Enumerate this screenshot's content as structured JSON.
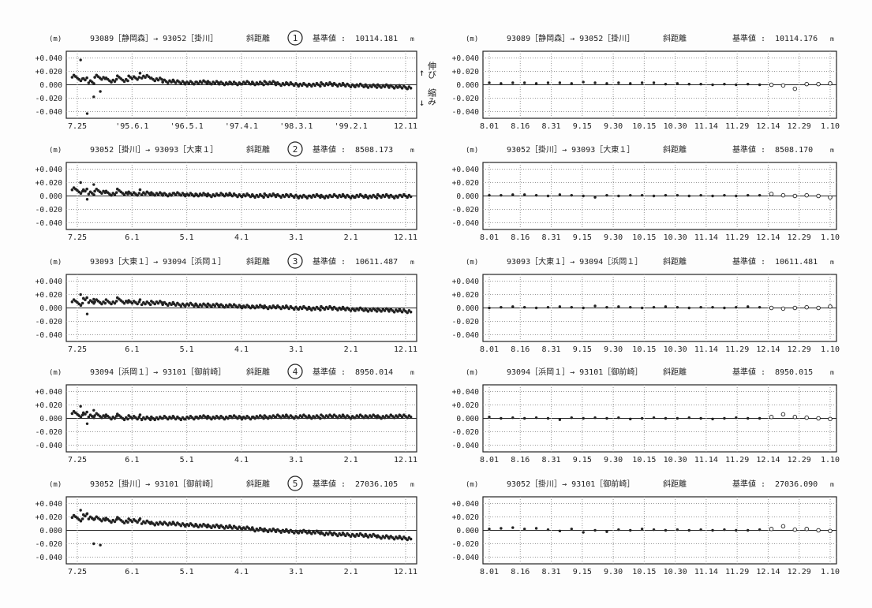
{
  "side_labels": {
    "up_arrow": "↑",
    "down_arrow": "↓",
    "extension": "伸び",
    "contraction": "縮み"
  },
  "chart_data": [
    {
      "type": "scatter",
      "panel": "left",
      "number": "1",
      "unit_label": "(m)",
      "route": "93089［静岡森］→ 93052［掛川］",
      "quantity": "斜距離",
      "base_label": "基準値 :",
      "base_value": "10114.181",
      "unit_suffix": "m",
      "y_ticks": [
        "+0.040",
        "+0.020",
        "0.000",
        "-0.020",
        "-0.040"
      ],
      "ylim": [
        -0.05,
        0.05
      ],
      "grid": true,
      "x_ticks": [
        "7.25",
        "'95.6.1",
        "'96.5.1",
        "'97.4.1",
        "'98.3.1",
        "'99.2.1",
        "12.11"
      ],
      "values": [
        0.008,
        0.004,
        0.009,
        0.006,
        0.007,
        0.01,
        0.012,
        0.008,
        0.005,
        0.004,
        0.003,
        0.004,
        0.003,
        0.002,
        0.002,
        0.003,
        0.002,
        0.003,
        0.001,
        0.001,
        0.0,
        0.0,
        0.001,
        0.0,
        -0.001,
        -0.001,
        -0.002,
        -0.002,
        -0.003,
        -0.004
      ],
      "outliers": [
        0.037,
        -0.043,
        -0.018,
        -0.01
      ]
    },
    {
      "type": "scatter",
      "panel": "right",
      "unit_label": "(m)",
      "route": "93089［静岡森］→ 93052［掛川］",
      "quantity": "斜距離",
      "base_label": "基準値 :",
      "base_value": "10114.176",
      "unit_suffix": "m",
      "y_ticks": [
        "+0.040",
        "+0.020",
        "0.000",
        "-0.020",
        "-0.040"
      ],
      "ylim": [
        -0.05,
        0.05
      ],
      "grid": true,
      "x_ticks": [
        "8.01",
        "8.16",
        "8.31",
        "9.15",
        "9.30",
        "10.15",
        "10.30",
        "11.14",
        "11.29",
        "12.14",
        "12.29",
        "1.10"
      ],
      "values": [
        0.003,
        0.002,
        0.003,
        0.003,
        0.002,
        0.003,
        0.003,
        0.002,
        0.004,
        0.003,
        0.002,
        0.003,
        0.002,
        0.003,
        0.003,
        0.001,
        0.002,
        0.001,
        0.001,
        0.0,
        0.001,
        0.0,
        0.001,
        0.0,
        0.0,
        -0.001,
        -0.006,
        0.001,
        0.001,
        0.002
      ],
      "open_from": 24
    },
    {
      "type": "scatter",
      "panel": "left",
      "number": "2",
      "unit_label": "(m)",
      "route": "93052［掛川］→ 93093［大東１］",
      "quantity": "斜距離",
      "base_label": "基準値 :",
      "base_value": "8508.173",
      "unit_suffix": "m",
      "y_ticks": [
        "+0.040",
        "+0.020",
        "0.000",
        "-0.020",
        "-0.040"
      ],
      "ylim": [
        -0.05,
        0.05
      ],
      "grid": true,
      "x_ticks": [
        "7.25",
        "6.1",
        "5.1",
        "4.1",
        "3.1",
        "2.1",
        "12.11"
      ],
      "values": [
        0.006,
        0.004,
        0.005,
        0.003,
        0.004,
        0.003,
        0.004,
        0.003,
        0.002,
        0.003,
        0.002,
        0.002,
        0.001,
        0.002,
        0.001,
        0.001,
        0.0,
        0.001,
        0.0,
        0.0,
        -0.001,
        0.0,
        -0.001,
        0.0,
        -0.001,
        0.0,
        -0.001,
        0.0,
        -0.001,
        0.0
      ],
      "outliers": [
        0.02,
        -0.005,
        0.017
      ]
    },
    {
      "type": "scatter",
      "panel": "right",
      "unit_label": "(m)",
      "route": "93052［掛川］→ 93093［大東１］",
      "quantity": "斜距離",
      "base_label": "基準値 :",
      "base_value": "8508.170",
      "unit_suffix": "m",
      "y_ticks": [
        "+0.040",
        "+0.020",
        "0.000",
        "-0.020",
        "-0.040"
      ],
      "ylim": [
        -0.05,
        0.05
      ],
      "grid": true,
      "x_ticks": [
        "8.01",
        "8.16",
        "8.31",
        "9.15",
        "9.30",
        "10.15",
        "10.30",
        "11.14",
        "11.29",
        "12.14",
        "12.29",
        "1.10"
      ],
      "values": [
        0.001,
        0.001,
        0.002,
        0.002,
        0.001,
        0.0,
        0.002,
        0.001,
        0.0,
        -0.002,
        0.001,
        0.0,
        0.001,
        0.001,
        0.0,
        0.001,
        0.001,
        0.0,
        0.001,
        0.0,
        0.001,
        0.0,
        0.001,
        0.001,
        0.003,
        0.001,
        0.0,
        0.001,
        0.0,
        -0.002
      ],
      "open_from": 24
    },
    {
      "type": "scatter",
      "panel": "left",
      "number": "3",
      "unit_label": "(m)",
      "route": "93093［大東１］→ 93094［浜岡１］",
      "quantity": "斜距離",
      "base_label": "基準値 :",
      "base_value": "10611.487",
      "unit_suffix": "m",
      "y_ticks": [
        "+0.040",
        "+0.020",
        "0.000",
        "-0.020",
        "-0.040"
      ],
      "ylim": [
        -0.05,
        0.05
      ],
      "grid": true,
      "x_ticks": [
        "7.25",
        "6.1",
        "5.1",
        "4.1",
        "3.1",
        "2.1",
        "12.11"
      ],
      "values": [
        0.006,
        0.009,
        0.007,
        0.008,
        0.009,
        0.008,
        0.007,
        0.008,
        0.006,
        0.005,
        0.005,
        0.004,
        0.004,
        0.003,
        0.003,
        0.002,
        0.002,
        0.001,
        0.001,
        0.0,
        0.0,
        -0.001,
        0.0,
        -0.001,
        -0.002,
        -0.002,
        -0.003,
        -0.003,
        -0.004,
        -0.005
      ],
      "outliers": [
        0.02,
        -0.009,
        0.013
      ]
    },
    {
      "type": "scatter",
      "panel": "right",
      "unit_label": "(m)",
      "route": "93093［大東１］→ 93094［浜岡１］",
      "quantity": "斜距離",
      "base_label": "基準値 :",
      "base_value": "10611.481",
      "unit_suffix": "m",
      "y_ticks": [
        "+0.040",
        "+0.020",
        "0.000",
        "-0.020",
        "-0.040"
      ],
      "ylim": [
        -0.05,
        0.05
      ],
      "grid": true,
      "x_ticks": [
        "8.01",
        "8.16",
        "8.31",
        "9.15",
        "9.30",
        "10.15",
        "10.30",
        "11.14",
        "11.29",
        "12.14",
        "12.29",
        "1.10"
      ],
      "values": [
        0.0,
        0.001,
        0.002,
        0.001,
        0.0,
        0.001,
        0.002,
        0.001,
        0.0,
        0.003,
        0.001,
        0.002,
        0.001,
        0.0,
        0.001,
        0.002,
        0.001,
        0.0,
        0.001,
        0.001,
        0.0,
        0.001,
        0.002,
        0.001,
        0.0,
        -0.001,
        0.0,
        0.001,
        0.0,
        0.002
      ],
      "open_from": 24
    },
    {
      "type": "scatter",
      "panel": "left",
      "number": "4",
      "unit_label": "(m)",
      "route": "93094［浜岡１］→ 93101［御前崎］",
      "quantity": "斜距離",
      "base_label": "基準値 :",
      "base_value": "8950.014",
      "unit_suffix": "m",
      "y_ticks": [
        "+0.040",
        "+0.020",
        "0.000",
        "-0.020",
        "-0.040"
      ],
      "ylim": [
        -0.05,
        0.05
      ],
      "grid": true,
      "x_ticks": [
        "7.25",
        "6.1",
        "5.1",
        "4.1",
        "3.1",
        "2.1",
        "12.11"
      ],
      "values": [
        0.004,
        0.003,
        0.002,
        0.001,
        0.0,
        0.001,
        0.0,
        0.0,
        0.001,
        0.0,
        0.001,
        0.002,
        0.001,
        0.001,
        0.002,
        0.001,
        0.002,
        0.002,
        0.003,
        0.002,
        0.003,
        0.002,
        0.003,
        0.003,
        0.002,
        0.003,
        0.003,
        0.002,
        0.003,
        0.003
      ],
      "outliers": [
        0.018,
        -0.008,
        0.012
      ]
    },
    {
      "type": "scatter",
      "panel": "right",
      "unit_label": "(m)",
      "route": "93094［浜岡１］→ 93101［御前崎］",
      "quantity": "斜距離",
      "base_label": "基準値 :",
      "base_value": "8950.015",
      "unit_suffix": "m",
      "y_ticks": [
        "+0.040",
        "+0.020",
        "0.000",
        "-0.020",
        "-0.040"
      ],
      "ylim": [
        -0.05,
        0.05
      ],
      "grid": true,
      "x_ticks": [
        "8.01",
        "8.16",
        "8.31",
        "9.15",
        "9.30",
        "10.15",
        "10.30",
        "11.14",
        "11.29",
        "12.14",
        "12.29",
        "1.10"
      ],
      "values": [
        0.002,
        0.0,
        0.001,
        0.0,
        0.001,
        0.0,
        -0.002,
        0.001,
        0.0,
        0.001,
        0.0,
        0.001,
        -0.001,
        0.0,
        0.001,
        0.0,
        0.0,
        0.001,
        0.0,
        -0.001,
        0.0,
        0.001,
        0.0,
        0.0,
        0.002,
        0.006,
        0.002,
        0.001,
        0.0,
        -0.001
      ],
      "open_from": 24
    },
    {
      "type": "scatter",
      "panel": "left",
      "number": "5",
      "unit_label": "(m)",
      "route": "93052［掛川］→ 93101［御前崎］",
      "quantity": "斜距離",
      "base_label": "基準値 :",
      "base_value": "27036.105",
      "unit_suffix": "m",
      "y_ticks": [
        "+0.040",
        "+0.020",
        "0.000",
        "-0.020",
        "-0.040"
      ],
      "ylim": [
        -0.05,
        0.05
      ],
      "grid": true,
      "x_ticks": [
        "7.25",
        "6.1",
        "5.1",
        "4.1",
        "3.1",
        "2.1",
        "12.11"
      ],
      "values": [
        0.016,
        0.018,
        0.015,
        0.014,
        0.013,
        0.014,
        0.012,
        0.01,
        0.01,
        0.009,
        0.008,
        0.007,
        0.006,
        0.005,
        0.004,
        0.003,
        0.001,
        0.0,
        -0.001,
        -0.002,
        -0.002,
        -0.003,
        -0.005,
        -0.006,
        -0.007,
        -0.007,
        -0.008,
        -0.01,
        -0.011,
        -0.012
      ],
      "outliers": [
        0.03,
        0.025,
        -0.02,
        -0.022
      ]
    },
    {
      "type": "scatter",
      "panel": "right",
      "unit_label": "(m)",
      "route": "93052［掛川］→ 93101［御前崎］",
      "quantity": "斜距離",
      "base_label": "基準値 :",
      "base_value": "27036.090",
      "unit_suffix": "m",
      "y_ticks": [
        "+0.040",
        "+0.020",
        "0.000",
        "-0.020",
        "-0.040"
      ],
      "ylim": [
        -0.05,
        0.05
      ],
      "grid": true,
      "x_ticks": [
        "8.01",
        "8.16",
        "8.31",
        "9.15",
        "9.30",
        "10.15",
        "10.30",
        "11.14",
        "11.29",
        "12.14",
        "12.29",
        "1.10"
      ],
      "values": [
        0.002,
        0.003,
        0.004,
        0.002,
        0.003,
        0.001,
        -0.001,
        0.002,
        -0.003,
        0.0,
        -0.002,
        0.001,
        0.0,
        0.002,
        0.001,
        0.0,
        0.001,
        0.0,
        0.001,
        0.0,
        0.001,
        0.0,
        0.0,
        0.001,
        0.002,
        0.006,
        0.001,
        0.002,
        0.0,
        -0.001
      ],
      "open_from": 24
    }
  ]
}
